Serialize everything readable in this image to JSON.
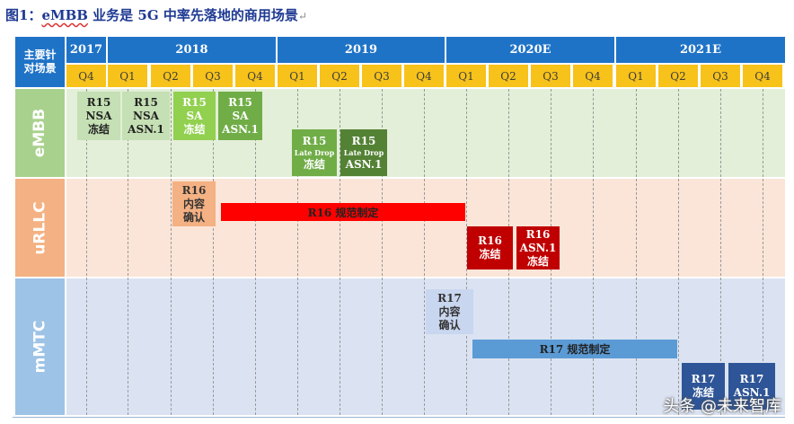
{
  "title": {
    "prefix": "图1：",
    "brand": "eMBB",
    "rest": " 业务是 5G 中率先落地的商用场景",
    "ret": "↵"
  },
  "corner_label": "主要针\n对场景",
  "years": [
    "2017",
    "2018",
    "2019",
    "2020E",
    "2021E"
  ],
  "quarters": [
    "Q4",
    "Q1",
    "Q2",
    "Q3",
    "Q4",
    "Q1",
    "Q2",
    "Q3",
    "Q4",
    "Q1",
    "Q2",
    "Q3",
    "Q4",
    "Q1",
    "Q2",
    "Q3",
    "Q4"
  ],
  "rows": [
    "eMBB",
    "uRLLC",
    "mMTC"
  ],
  "embb": {
    "r15_nsa_freeze": [
      "R15",
      "NSA",
      "冻结"
    ],
    "r15_nsa_asn": [
      "R15",
      "NSA",
      "ASN.1"
    ],
    "r15_sa_freeze": [
      "R15",
      "SA",
      "冻结"
    ],
    "r15_sa_asn": [
      "R15",
      "SA",
      "ASN.1"
    ],
    "r15_late_freeze": [
      "R15",
      "Late Drop",
      "冻结"
    ],
    "r15_late_asn": [
      "R15",
      "Late Drop",
      "ASN.1"
    ]
  },
  "urllc": {
    "r16_confirm": [
      "R16",
      "内容",
      "确认"
    ],
    "r16_spec": "R16 规范制定",
    "r16_freeze": [
      "R16",
      "冻结"
    ],
    "r16_asn": [
      "R16",
      "ASN.1",
      "冻结"
    ]
  },
  "mmtc": {
    "r17_confirm": [
      "R17",
      "内容",
      "确认"
    ],
    "r17_spec": "R17 规范制定",
    "r17_freeze": [
      "R17",
      "冻结"
    ],
    "r17_asn": [
      "R17",
      "ASN.1"
    ]
  },
  "watermark": "头条 @未来智库",
  "colors": {
    "header_blue": "#1f73c7",
    "quarter_yellow": "#f7c21a",
    "embb_band": "#e3efd8",
    "urllc_band": "#fbe5d8",
    "mmtc_band": "#dbe3f2",
    "red_bar": "#ff0000",
    "dark_red": "#c00000",
    "blue_bar": "#5b9bd5",
    "dark_blue": "#2e5597"
  }
}
